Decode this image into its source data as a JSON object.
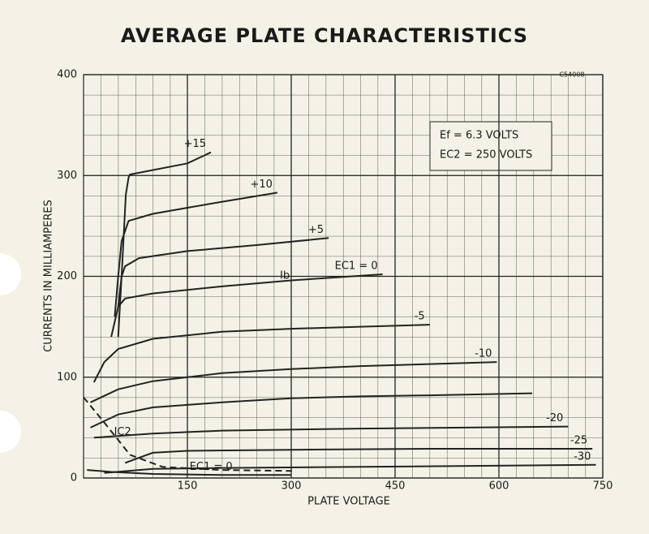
{
  "chart_data": {
    "type": "line",
    "title": "AVERAGE PLATE CHARACTERISTICS",
    "code": "C54008",
    "xlabel": "PLATE VOLTAGE",
    "ylabel": "CURRENTS IN MILLIAMPERES",
    "notes": [
      "Ef = 6.3 VOLTS",
      "EC2 = 250 VOLTS"
    ],
    "annotation": "Ib",
    "xlim": [
      0,
      750
    ],
    "xticks": [
      150,
      300,
      450,
      600,
      750
    ],
    "ylim": [
      0,
      400
    ],
    "yticks": [
      0,
      100,
      200,
      300,
      400
    ],
    "grid": true,
    "series": [
      {
        "name": "+15",
        "color": "#222",
        "x": [
          50,
          55,
          61,
          65,
          67,
          150,
          184
        ],
        "values": [
          140,
          200,
          281,
          298,
          301,
          312,
          323
        ]
      },
      {
        "name": "+10",
        "color": "#222",
        "x": [
          45,
          50,
          55,
          65,
          100,
          150,
          200,
          280
        ],
        "values": [
          160,
          200,
          235,
          255,
          262,
          268,
          274,
          283
        ]
      },
      {
        "name": "+5",
        "color": "#222",
        "x": [
          50,
          55,
          60,
          80,
          150,
          250,
          354
        ],
        "values": [
          170,
          200,
          210,
          218,
          225,
          231,
          238
        ]
      },
      {
        "name": "EC1 = 0",
        "color": "#222",
        "x": [
          40,
          50,
          60,
          100,
          200,
          300,
          432
        ],
        "values": [
          140,
          170,
          178,
          183,
          190,
          196,
          202
        ]
      },
      {
        "name": "-5",
        "color": "#222",
        "x": [
          15,
          30,
          50,
          100,
          200,
          300,
          400,
          500
        ],
        "values": [
          95,
          115,
          128,
          138,
          145,
          148,
          150,
          152
        ]
      },
      {
        "name": "-10",
        "color": "#222",
        "x": [
          10,
          50,
          100,
          200,
          300,
          400,
          500,
          597
        ],
        "values": [
          75,
          88,
          96,
          104,
          108,
          111,
          113,
          115
        ]
      },
      {
        "name": null,
        "color": "#222",
        "x": [
          10,
          50,
          100,
          200,
          300,
          400,
          500,
          648
        ],
        "values": [
          50,
          63,
          70,
          75,
          79,
          81,
          82,
          84
        ]
      },
      {
        "name": "-20",
        "color": "#222",
        "x": [
          15,
          100,
          200,
          400,
          700
        ],
        "values": [
          40,
          44,
          47,
          49,
          51
        ]
      },
      {
        "name": "-25",
        "color": "#222",
        "x": [
          60,
          80,
          100,
          150,
          300,
          500,
          735
        ],
        "values": [
          15,
          20,
          25,
          27,
          28,
          29,
          29
        ]
      },
      {
        "name": "-30",
        "color": "#222",
        "x": [
          30,
          100,
          200,
          400,
          740
        ],
        "values": [
          5,
          9,
          10,
          11,
          13
        ]
      },
      {
        "name": "IC2",
        "color": "#222",
        "dash": true,
        "x": [
          0,
          30,
          67,
          114,
          200,
          301
        ],
        "values": [
          80,
          55,
          23,
          11,
          8,
          7
        ]
      },
      {
        "name": "EC1 = 0",
        "color": "#222",
        "x": [
          5,
          40,
          100,
          200,
          300
        ],
        "values": [
          8,
          6,
          4,
          3,
          3
        ]
      }
    ]
  }
}
